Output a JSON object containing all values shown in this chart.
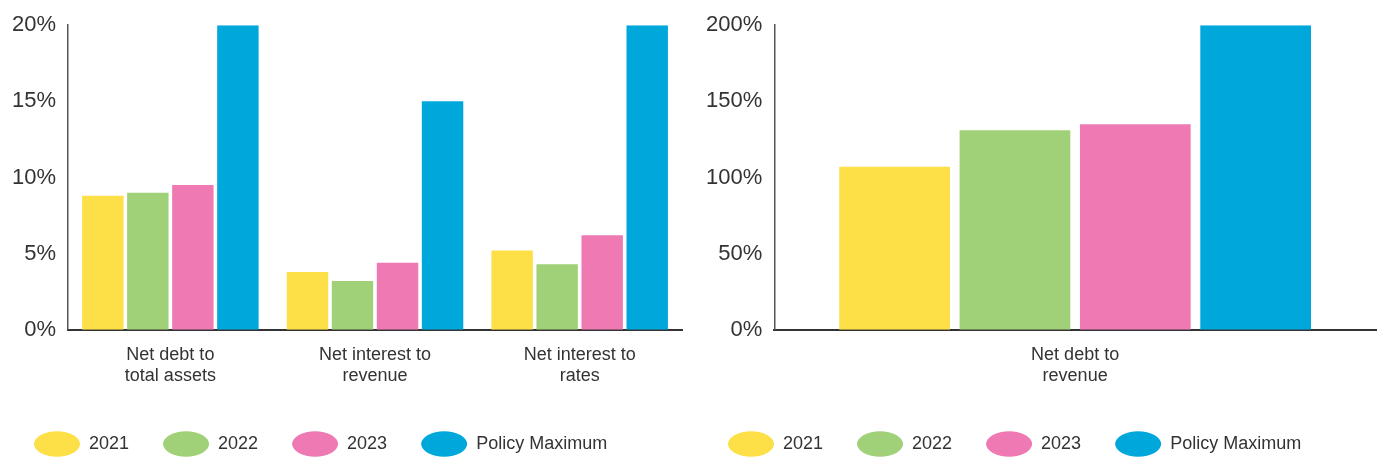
{
  "chart_data": [
    {
      "type": "bar",
      "categories": [
        "Net debt to total assets",
        "Net interest to revenue",
        "Net interest to rates"
      ],
      "series": [
        {
          "name": "2021",
          "color": "#fddf47",
          "values": [
            8.8,
            3.8,
            5.2
          ]
        },
        {
          "name": "2022",
          "color": "#a0d077",
          "values": [
            9.0,
            3.2,
            4.3
          ]
        },
        {
          "name": "2023",
          "color": "#ee79b3",
          "values": [
            9.5,
            4.4,
            6.2
          ]
        },
        {
          "name": "Policy Maximum",
          "color": "#00a7db",
          "values": [
            20,
            15,
            20
          ]
        }
      ],
      "ylim": [
        0,
        20
      ],
      "yticks": [
        {
          "value": 0,
          "label": "0%"
        },
        {
          "value": 5,
          "label": "5%"
        },
        {
          "value": 10,
          "label": "10%"
        },
        {
          "value": 15,
          "label": "15%"
        },
        {
          "value": 20,
          "label": "20%"
        }
      ],
      "grid": false,
      "legend": "bottom"
    },
    {
      "type": "bar",
      "categories": [
        "Net debt to revenue"
      ],
      "series": [
        {
          "name": "2021",
          "color": "#fddf47",
          "values": [
            107
          ]
        },
        {
          "name": "2022",
          "color": "#a0d077",
          "values": [
            131
          ]
        },
        {
          "name": "2023",
          "color": "#ee79b3",
          "values": [
            135
          ]
        },
        {
          "name": "Policy Maximum",
          "color": "#00a7db",
          "values": [
            200
          ]
        }
      ],
      "ylim": [
        0,
        200
      ],
      "yticks": [
        {
          "value": 0,
          "label": "0%"
        },
        {
          "value": 50,
          "label": "50%"
        },
        {
          "value": 100,
          "label": "100%"
        },
        {
          "value": 150,
          "label": "150%"
        },
        {
          "value": 200,
          "label": "200%"
        }
      ],
      "grid": false,
      "legend": "bottom"
    }
  ]
}
